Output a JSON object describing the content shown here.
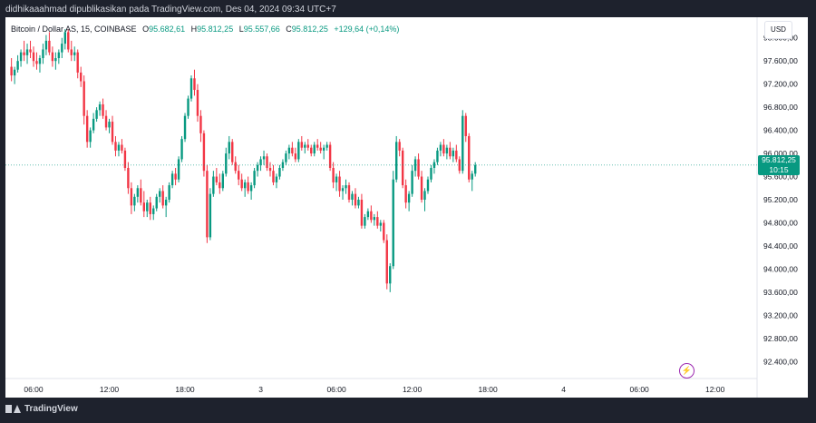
{
  "caption": "didhikaaahmad dipublikasikan pada TradingView.com, Des 04, 2024 09:34 UTC+7",
  "footer_brand": "TradingView",
  "legend": {
    "symbol": "Bitcoin / Dollar AS, 15, COINBASE",
    "o_label": "O",
    "o_value": "95.682,61",
    "h_label": "H",
    "h_value": "95.812,25",
    "l_label": "L",
    "l_value": "95.557,66",
    "c_label": "C",
    "c_value": "95.812,25",
    "change": "+129,64 (+0,14%)"
  },
  "price_axis": {
    "currency": "USD"
  },
  "last_price": {
    "value": "95.812,25",
    "countdown": "10:15"
  },
  "icons": {
    "alert": "lightning-icon",
    "brand": "tradingview-logo"
  },
  "colors": {
    "up": "#089981",
    "down": "#f23645",
    "last_price": "#089981",
    "background": "#1e222d"
  },
  "chart_data": {
    "type": "candlestick",
    "interval": "15",
    "ylim": [
      92200,
      98200
    ],
    "y_ticks": [
      {
        "value": 92400,
        "label": "92.400,00"
      },
      {
        "value": 92800,
        "label": "92.800,00"
      },
      {
        "value": 93200,
        "label": "93.200,00"
      },
      {
        "value": 93600,
        "label": "93.600,00"
      },
      {
        "value": 94000,
        "label": "94.000,00"
      },
      {
        "value": 94400,
        "label": "94.400,00"
      },
      {
        "value": 94800,
        "label": "94.800,00"
      },
      {
        "value": 95200,
        "label": "95.200,00"
      },
      {
        "value": 95600,
        "label": "95.600,00"
      },
      {
        "value": 96000,
        "label": "96.000,00"
      },
      {
        "value": 96400,
        "label": "96.400,00"
      },
      {
        "value": 96800,
        "label": "96.800,00"
      },
      {
        "value": 97200,
        "label": "97.200,00"
      },
      {
        "value": 97600,
        "label": "97.600,00"
      },
      {
        "value": 98000,
        "label": "98.000,00"
      }
    ],
    "x_ticks": [
      {
        "bar": 0,
        "label": "06:00"
      },
      {
        "bar": 24,
        "label": "12:00"
      },
      {
        "bar": 48,
        "label": "18:00"
      },
      {
        "bar": 72,
        "label": "3"
      },
      {
        "bar": 96,
        "label": "06:00"
      },
      {
        "bar": 120,
        "label": "12:00"
      },
      {
        "bar": 144,
        "label": "18:00"
      },
      {
        "bar": 168,
        "label": "4"
      },
      {
        "bar": 192,
        "label": "06:00"
      },
      {
        "bar": 216,
        "label": "12:00"
      }
    ],
    "first_bar_offset": -7,
    "ohlc": [
      [
        97500,
        97650,
        97250,
        97350
      ],
      [
        97350,
        97500,
        97200,
        97450
      ],
      [
        97450,
        97700,
        97400,
        97600
      ],
      [
        97600,
        97800,
        97500,
        97750
      ],
      [
        97750,
        97950,
        97600,
        97700
      ],
      [
        97700,
        97900,
        97550,
        97800
      ],
      [
        97800,
        97950,
        97650,
        97750
      ],
      [
        97750,
        97850,
        97500,
        97600
      ],
      [
        97600,
        97750,
        97450,
        97550
      ],
      [
        97550,
        97700,
        97400,
        97650
      ],
      [
        97650,
        97900,
        97550,
        97800
      ],
      [
        97800,
        98050,
        97700,
        97950
      ],
      [
        97950,
        98100,
        97700,
        97750
      ],
      [
        97750,
        97850,
        97500,
        97600
      ],
      [
        97600,
        97750,
        97450,
        97650
      ],
      [
        97650,
        97800,
        97550,
        97750
      ],
      [
        97750,
        98000,
        97650,
        97900
      ],
      [
        97900,
        98150,
        97800,
        98100
      ],
      [
        98100,
        98150,
        97750,
        97800
      ],
      [
        97800,
        97950,
        97600,
        97700
      ],
      [
        97700,
        97850,
        97600,
        97750
      ],
      [
        97750,
        97800,
        97300,
        97400
      ],
      [
        97400,
        97500,
        97150,
        97250
      ],
      [
        97250,
        97350,
        96500,
        96650
      ],
      [
        96650,
        96750,
        96100,
        96200
      ],
      [
        96200,
        96450,
        96100,
        96400
      ],
      [
        96400,
        96700,
        96350,
        96600
      ],
      [
        96600,
        96800,
        96550,
        96750
      ],
      [
        96750,
        96900,
        96650,
        96850
      ],
      [
        96850,
        96950,
        96600,
        96650
      ],
      [
        96650,
        96750,
        96400,
        96450
      ],
      [
        96450,
        96600,
        96350,
        96550
      ],
      [
        96550,
        96650,
        96150,
        96200
      ],
      [
        96200,
        96300,
        95950,
        96050
      ],
      [
        96050,
        96200,
        95950,
        96150
      ],
      [
        96150,
        96250,
        96000,
        96050
      ],
      [
        96050,
        96100,
        95700,
        95750
      ],
      [
        95750,
        95850,
        95300,
        95400
      ],
      [
        95400,
        95500,
        94950,
        95100
      ],
      [
        95100,
        95300,
        95000,
        95250
      ],
      [
        95250,
        95450,
        95150,
        95400
      ],
      [
        95400,
        95550,
        95100,
        95150
      ],
      [
        95150,
        95350,
        94900,
        95000
      ],
      [
        95000,
        95200,
        94900,
        95150
      ],
      [
        95150,
        95250,
        94850,
        94950
      ],
      [
        94950,
        95100,
        94850,
        95050
      ],
      [
        95050,
        95300,
        95000,
        95250
      ],
      [
        95250,
        95400,
        95150,
        95350
      ],
      [
        95350,
        95450,
        95050,
        95100
      ],
      [
        95100,
        95250,
        94900,
        95200
      ],
      [
        95200,
        95500,
        95150,
        95450
      ],
      [
        95450,
        95700,
        95400,
        95650
      ],
      [
        95650,
        95750,
        95450,
        95550
      ],
      [
        95550,
        95950,
        95500,
        95900
      ],
      [
        95900,
        96300,
        95850,
        96250
      ],
      [
        96250,
        96700,
        96200,
        96650
      ],
      [
        96650,
        97000,
        96600,
        96950
      ],
      [
        96950,
        97350,
        96900,
        97300
      ],
      [
        97300,
        97450,
        97000,
        97100
      ],
      [
        97100,
        97200,
        96550,
        96650
      ],
      [
        96650,
        96750,
        96200,
        96350
      ],
      [
        96350,
        96400,
        95600,
        95700
      ],
      [
        95700,
        95800,
        94450,
        94550
      ],
      [
        94550,
        95400,
        94500,
        95300
      ],
      [
        95300,
        95700,
        95250,
        95600
      ],
      [
        95600,
        95750,
        95450,
        95500
      ],
      [
        95500,
        95650,
        95300,
        95400
      ],
      [
        95400,
        95700,
        95350,
        95650
      ],
      [
        95650,
        96100,
        95600,
        96000
      ],
      [
        96000,
        96300,
        95900,
        96200
      ],
      [
        96200,
        96250,
        95800,
        95850
      ],
      [
        95850,
        95950,
        95650,
        95700
      ],
      [
        95700,
        95800,
        95450,
        95550
      ],
      [
        95550,
        95650,
        95350,
        95400
      ],
      [
        95400,
        95550,
        95250,
        95500
      ],
      [
        95500,
        95600,
        95300,
        95350
      ],
      [
        95350,
        95500,
        95200,
        95450
      ],
      [
        95450,
        95750,
        95400,
        95700
      ],
      [
        95700,
        95850,
        95600,
        95800
      ],
      [
        95800,
        95950,
        95700,
        95900
      ],
      [
        95900,
        96050,
        95800,
        95950
      ],
      [
        95950,
        96000,
        95700,
        95750
      ],
      [
        95750,
        95850,
        95600,
        95700
      ],
      [
        95700,
        95800,
        95450,
        95500
      ],
      [
        95500,
        95650,
        95400,
        95600
      ],
      [
        95600,
        95800,
        95550,
        95750
      ],
      [
        95750,
        95900,
        95700,
        95850
      ],
      [
        95850,
        96050,
        95800,
        96000
      ],
      [
        96000,
        96150,
        95900,
        96100
      ],
      [
        96100,
        96200,
        95950,
        96000
      ],
      [
        96000,
        96100,
        95850,
        95900
      ],
      [
        95900,
        96250,
        95850,
        96200
      ],
      [
        96200,
        96300,
        96050,
        96100
      ],
      [
        96100,
        96200,
        96000,
        96150
      ],
      [
        96150,
        96250,
        96050,
        96100
      ],
      [
        96100,
        96150,
        95950,
        96000
      ],
      [
        96000,
        96200,
        95950,
        96150
      ],
      [
        96150,
        96250,
        96050,
        96100
      ],
      [
        96100,
        96200,
        96000,
        96050
      ],
      [
        96050,
        96150,
        95900,
        96100
      ],
      [
        96100,
        96200,
        96050,
        96150
      ],
      [
        96150,
        96200,
        95700,
        95750
      ],
      [
        95750,
        95850,
        95400,
        95500
      ],
      [
        95500,
        95650,
        95350,
        95600
      ],
      [
        95600,
        95700,
        95250,
        95350
      ],
      [
        95350,
        95450,
        95200,
        95400
      ],
      [
        95400,
        95550,
        95300,
        95450
      ],
      [
        95450,
        95500,
        95150,
        95200
      ],
      [
        95200,
        95350,
        95100,
        95300
      ],
      [
        95300,
        95400,
        95050,
        95100
      ],
      [
        95100,
        95250,
        95050,
        95200
      ],
      [
        95200,
        95300,
        94700,
        94750
      ],
      [
        94750,
        94950,
        94700,
        94900
      ],
      [
        94900,
        95050,
        94850,
        95000
      ],
      [
        95000,
        95100,
        94800,
        94850
      ],
      [
        94850,
        94950,
        94750,
        94900
      ],
      [
        94900,
        95000,
        94700,
        94750
      ],
      [
        94750,
        94850,
        94650,
        94800
      ],
      [
        94800,
        94850,
        94450,
        94500
      ],
      [
        94500,
        94600,
        93650,
        93750
      ],
      [
        93750,
        94100,
        93600,
        94050
      ],
      [
        94050,
        95700,
        94000,
        95550
      ],
      [
        95550,
        96300,
        95500,
        96200
      ],
      [
        96200,
        96250,
        95950,
        96050
      ],
      [
        96050,
        96100,
        95400,
        95450
      ],
      [
        95450,
        95550,
        95050,
        95150
      ],
      [
        95150,
        95350,
        95000,
        95300
      ],
      [
        95300,
        95800,
        95250,
        95700
      ],
      [
        95700,
        95950,
        95600,
        95900
      ],
      [
        95900,
        96000,
        95550,
        95600
      ],
      [
        95600,
        95700,
        95150,
        95200
      ],
      [
        95200,
        95400,
        95000,
        95350
      ],
      [
        95350,
        95600,
        95300,
        95550
      ],
      [
        95550,
        95800,
        95500,
        95750
      ],
      [
        95750,
        95900,
        95650,
        95850
      ],
      [
        95850,
        96100,
        95800,
        96050
      ],
      [
        96050,
        96200,
        95950,
        96150
      ],
      [
        96150,
        96250,
        95950,
        96000
      ],
      [
        96000,
        96150,
        95900,
        96100
      ],
      [
        96100,
        96200,
        95900,
        95950
      ],
      [
        95950,
        96100,
        95850,
        96050
      ],
      [
        96050,
        96150,
        95850,
        95900
      ],
      [
        95900,
        95950,
        95650,
        95700
      ],
      [
        95700,
        96750,
        95650,
        96650
      ],
      [
        96650,
        96700,
        96200,
        96300
      ],
      [
        96300,
        96350,
        95500,
        95550
      ],
      [
        95550,
        95700,
        95350,
        95650
      ],
      [
        95650,
        95850,
        95600,
        95800
      ]
    ]
  }
}
